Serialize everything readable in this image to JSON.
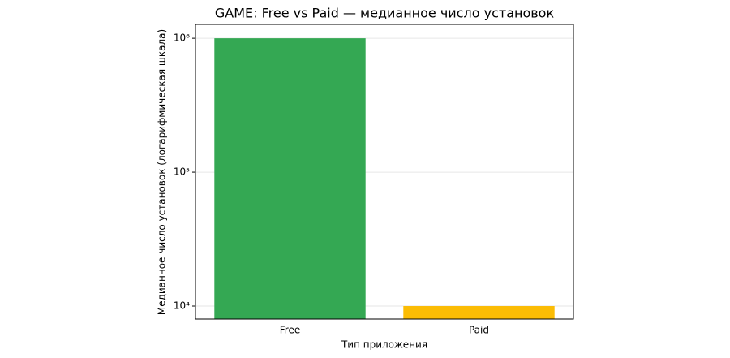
{
  "chart_data": {
    "type": "bar",
    "title": "GAME: Free vs Paid — медианное число установок",
    "x_label": "Тип приложения",
    "y_label": "Медианное число установок (логарифмическая шкала)",
    "categories": [
      "Free",
      "Paid"
    ],
    "values": [
      1000000,
      10000
    ],
    "colors": [
      "#34a853",
      "#fbbc04"
    ],
    "log_y": true,
    "ylim": [
      8000,
      1270000
    ],
    "yticks": [
      {
        "value": 10000,
        "label": "10⁴"
      },
      {
        "value": 100000,
        "label": "10⁵"
      },
      {
        "value": 1000000,
        "label": "10⁶"
      }
    ],
    "grid": true
  }
}
